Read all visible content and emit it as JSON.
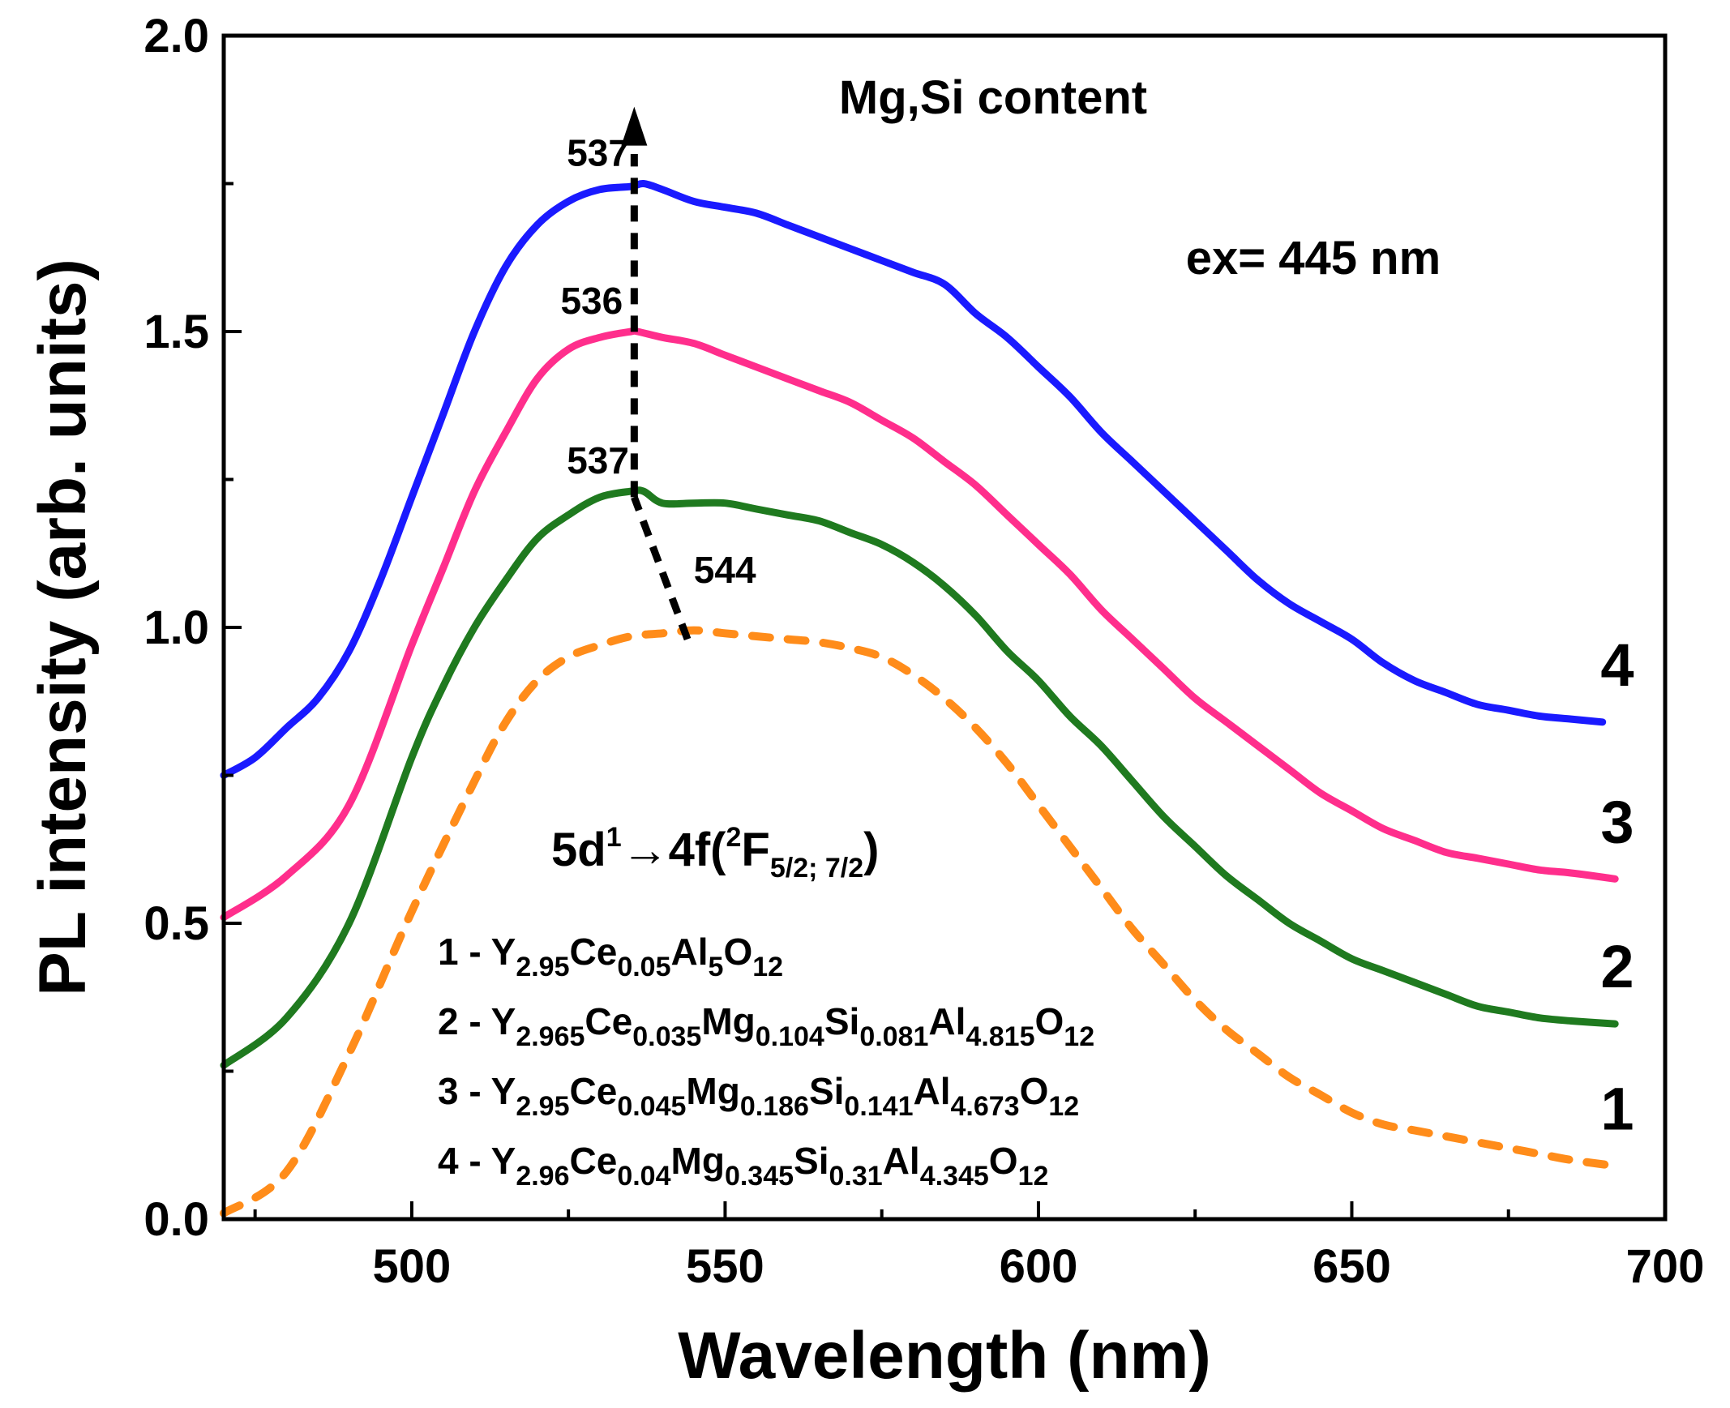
{
  "chart_data": {
    "type": "line",
    "xlabel": "Wavelength (nm)",
    "ylabel": "PL intensity (arb. units)",
    "xlim": [
      470,
      700
    ],
    "ylim": [
      0.0,
      2.0
    ],
    "xticks": [
      "500",
      "550",
      "600",
      "650",
      "700"
    ],
    "yticks": [
      "0.0",
      "0.5",
      "1.0",
      "1.5",
      "2.0"
    ],
    "grid": false,
    "annotations": {
      "trend": "Mg,Si content",
      "excitation": "ex= 445 nm",
      "transition": {
        "base": "5d",
        "sup1": "1",
        "arrow": "→4f(",
        "sup2": "2",
        "main2": "F",
        "sub": "5/2; 7/2",
        "close": ")"
      }
    },
    "series": [
      {
        "name": "1",
        "color": "#ff8c1a",
        "dash": true,
        "peak_label": "544",
        "x": [
          470,
          480,
          490,
          500,
          510,
          515,
          520,
          525,
          530,
          535,
          540,
          545,
          550,
          555,
          560,
          565,
          570,
          575,
          580,
          585,
          590,
          595,
          600,
          605,
          610,
          615,
          620,
          625,
          630,
          635,
          640,
          645,
          650,
          655,
          660,
          665,
          670,
          675,
          680,
          685,
          692
        ],
        "y": [
          0.01,
          0.08,
          0.28,
          0.52,
          0.74,
          0.84,
          0.91,
          0.95,
          0.97,
          0.985,
          0.99,
          0.995,
          0.99,
          0.985,
          0.98,
          0.975,
          0.965,
          0.95,
          0.92,
          0.88,
          0.83,
          0.77,
          0.7,
          0.63,
          0.56,
          0.49,
          0.43,
          0.37,
          0.32,
          0.28,
          0.24,
          0.21,
          0.18,
          0.16,
          0.15,
          0.14,
          0.13,
          0.12,
          0.11,
          0.1,
          0.09
        ]
      },
      {
        "name": "2",
        "color": "#1f7a1f",
        "dash": false,
        "peak_label": "537",
        "x": [
          470,
          480,
          490,
          500,
          505,
          510,
          515,
          520,
          525,
          530,
          535,
          537,
          540,
          545,
          550,
          555,
          560,
          565,
          570,
          575,
          580,
          585,
          590,
          595,
          600,
          605,
          610,
          615,
          620,
          625,
          630,
          635,
          640,
          645,
          650,
          655,
          660,
          665,
          670,
          675,
          680,
          685,
          692
        ],
        "y": [
          0.26,
          0.34,
          0.5,
          0.78,
          0.9,
          1.0,
          1.08,
          1.15,
          1.19,
          1.22,
          1.23,
          1.23,
          1.21,
          1.21,
          1.21,
          1.2,
          1.19,
          1.18,
          1.16,
          1.14,
          1.11,
          1.07,
          1.02,
          0.96,
          0.91,
          0.85,
          0.8,
          0.74,
          0.68,
          0.63,
          0.58,
          0.54,
          0.5,
          0.47,
          0.44,
          0.42,
          0.4,
          0.38,
          0.36,
          0.35,
          0.34,
          0.335,
          0.33
        ]
      },
      {
        "name": "3",
        "color": "#ff2e8c",
        "dash": false,
        "peak_label": "536",
        "x": [
          470,
          480,
          490,
          500,
          505,
          510,
          515,
          520,
          525,
          530,
          535,
          536,
          540,
          545,
          550,
          555,
          560,
          565,
          570,
          575,
          580,
          585,
          590,
          595,
          600,
          605,
          610,
          615,
          620,
          625,
          630,
          635,
          640,
          645,
          650,
          655,
          660,
          665,
          670,
          675,
          680,
          685,
          692
        ],
        "y": [
          0.51,
          0.58,
          0.7,
          0.97,
          1.1,
          1.23,
          1.33,
          1.42,
          1.47,
          1.49,
          1.5,
          1.5,
          1.49,
          1.48,
          1.46,
          1.44,
          1.42,
          1.4,
          1.38,
          1.35,
          1.32,
          1.28,
          1.24,
          1.19,
          1.14,
          1.09,
          1.03,
          0.98,
          0.93,
          0.88,
          0.84,
          0.8,
          0.76,
          0.72,
          0.69,
          0.66,
          0.64,
          0.62,
          0.61,
          0.6,
          0.59,
          0.585,
          0.575
        ]
      },
      {
        "name": "4",
        "color": "#1a1aff",
        "dash": false,
        "peak_label": "537",
        "x": [
          470,
          475,
          480,
          485,
          490,
          495,
          500,
          505,
          510,
          515,
          520,
          525,
          530,
          535,
          537,
          540,
          545,
          550,
          555,
          560,
          565,
          570,
          575,
          580,
          585,
          590,
          595,
          600,
          605,
          610,
          615,
          620,
          625,
          630,
          635,
          640,
          645,
          650,
          655,
          660,
          665,
          670,
          675,
          680,
          685,
          690
        ],
        "y": [
          0.75,
          0.78,
          0.83,
          0.88,
          0.96,
          1.08,
          1.22,
          1.36,
          1.5,
          1.61,
          1.68,
          1.72,
          1.74,
          1.745,
          1.75,
          1.74,
          1.72,
          1.71,
          1.7,
          1.68,
          1.66,
          1.64,
          1.62,
          1.6,
          1.58,
          1.53,
          1.49,
          1.44,
          1.39,
          1.33,
          1.28,
          1.23,
          1.18,
          1.13,
          1.08,
          1.04,
          1.01,
          0.98,
          0.94,
          0.91,
          0.89,
          0.87,
          0.86,
          0.85,
          0.845,
          0.84
        ]
      }
    ],
    "legend": [
      {
        "num": "1",
        "parts": [
          [
            "Y",
            ""
          ],
          [
            "2.95",
            "s"
          ],
          [
            "Ce",
            ""
          ],
          [
            "0.05",
            "s"
          ],
          [
            "Al",
            ""
          ],
          [
            "5",
            "s"
          ],
          [
            "O",
            ""
          ],
          [
            "12",
            "s"
          ]
        ]
      },
      {
        "num": "2",
        "parts": [
          [
            "Y",
            ""
          ],
          [
            "2.965",
            "s"
          ],
          [
            "Ce",
            ""
          ],
          [
            "0.035",
            "s"
          ],
          [
            "Mg",
            ""
          ],
          [
            "0.104",
            "s"
          ],
          [
            "Si",
            ""
          ],
          [
            "0.081",
            "s"
          ],
          [
            "Al",
            ""
          ],
          [
            "4.815",
            "s"
          ],
          [
            "O",
            ""
          ],
          [
            "12",
            "s"
          ]
        ]
      },
      {
        "num": "3",
        "parts": [
          [
            "Y",
            ""
          ],
          [
            "2.95",
            "s"
          ],
          [
            "Ce",
            ""
          ],
          [
            "0.045",
            "s"
          ],
          [
            "Mg",
            ""
          ],
          [
            "0.186",
            "s"
          ],
          [
            "Si",
            ""
          ],
          [
            "0.141",
            "s"
          ],
          [
            "Al",
            ""
          ],
          [
            "4.673",
            "s"
          ],
          [
            "O",
            ""
          ],
          [
            "12",
            "s"
          ]
        ]
      },
      {
        "num": "4",
        "parts": [
          [
            "Y",
            ""
          ],
          [
            "2.96",
            "s"
          ],
          [
            "Ce",
            ""
          ],
          [
            "0.04",
            "s"
          ],
          [
            "Mg",
            ""
          ],
          [
            "0.345",
            "s"
          ],
          [
            "Si",
            ""
          ],
          [
            "0.31",
            "s"
          ],
          [
            "Al",
            ""
          ],
          [
            "4.345",
            "s"
          ],
          [
            "O",
            ""
          ],
          [
            "12",
            "s"
          ]
        ]
      }
    ],
    "legend_placement": "bottom-center"
  }
}
